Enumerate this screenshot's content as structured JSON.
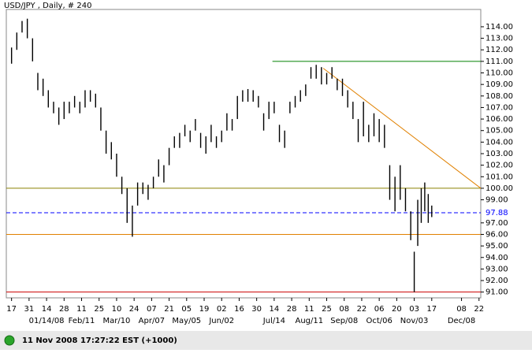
{
  "chart_data": {
    "type": "ohlc",
    "title": "USD/JPY , Daily, # 240",
    "status": "11 Nov 2008 17:27:22 EST (+1000)",
    "color": "#000000",
    "x": [
      0,
      3,
      6,
      9,
      12,
      15,
      18,
      21,
      24,
      27,
      30,
      33,
      36,
      39,
      42,
      45,
      48,
      51,
      54,
      57,
      60,
      63,
      66,
      69,
      72,
      75,
      78,
      81,
      84,
      87,
      90,
      93,
      96,
      99,
      102,
      105,
      108,
      111,
      114,
      117,
      120,
      123,
      126,
      129,
      132,
      135,
      138,
      141,
      144,
      147,
      150,
      153,
      156,
      159,
      162,
      165,
      168,
      171,
      174,
      177,
      180,
      183,
      186,
      189,
      192,
      195,
      198,
      201,
      204,
      207,
      210,
      213,
      216,
      219,
      222,
      225,
      228,
      230,
      232,
      234,
      236,
      238,
      240
    ],
    "high": [
      112.2,
      113.5,
      114.5,
      114.7,
      113,
      110,
      109.5,
      108.5,
      107.5,
      107,
      107.5,
      107.5,
      108,
      107.5,
      108.5,
      108.5,
      108.2,
      107,
      105,
      104,
      103,
      101,
      100,
      98.5,
      100.5,
      100.5,
      100.3,
      101,
      102.5,
      102,
      103.5,
      104.5,
      104.8,
      105.5,
      105,
      106,
      104.8,
      104.5,
      105.5,
      104.5,
      105,
      106.5,
      106,
      108,
      108.5,
      108.6,
      108.5,
      108,
      106.5,
      107.5,
      107.5,
      105.5,
      105,
      107.5,
      108,
      108.5,
      109,
      110.5,
      110.7,
      110.5,
      110,
      110.5,
      109.5,
      109.5,
      108.5,
      107.5,
      106,
      107.5,
      105.5,
      106.5,
      106,
      105.5,
      102,
      101,
      102,
      100,
      98,
      94.5,
      99,
      100,
      100.5,
      99.5,
      98.5
    ],
    "low": [
      110.8,
      112,
      113.5,
      113,
      111,
      108.5,
      108,
      107,
      106.5,
      105.5,
      106,
      106.5,
      107,
      106.5,
      107,
      107.5,
      107,
      105,
      103,
      102.5,
      101,
      99.5,
      97,
      95.8,
      98.5,
      99.5,
      99,
      100,
      101,
      100.5,
      102,
      103.5,
      103.5,
      104.5,
      104,
      105,
      103.5,
      103,
      104,
      103.5,
      104,
      105,
      105,
      106,
      107.5,
      107.5,
      107.5,
      107,
      105,
      106,
      106.5,
      104,
      103.5,
      106.5,
      107,
      107.5,
      108,
      109.5,
      109.5,
      109,
      109,
      109.5,
      108.5,
      108,
      107,
      106,
      104,
      104.5,
      104,
      104.5,
      104,
      103.5,
      99,
      98,
      99,
      98,
      95.5,
      91,
      95,
      97,
      98,
      97,
      97.5
    ],
    "xlim": [
      -3,
      268
    ],
    "ylim": [
      90.5,
      115.5
    ],
    "xticks": [
      {
        "value": 0,
        "label": "17"
      },
      {
        "value": 10,
        "label": "31"
      },
      {
        "value": 20,
        "label": "14"
      },
      {
        "value": 30,
        "label": "28"
      },
      {
        "value": 40,
        "label": "11"
      },
      {
        "value": 50,
        "label": "25"
      },
      {
        "value": 60,
        "label": "10"
      },
      {
        "value": 70,
        "label": "24"
      },
      {
        "value": 80,
        "label": "07"
      },
      {
        "value": 90,
        "label": "21"
      },
      {
        "value": 100,
        "label": "05"
      },
      {
        "value": 110,
        "label": "19"
      },
      {
        "value": 120,
        "label": "02"
      },
      {
        "value": 130,
        "label": "16"
      },
      {
        "value": 140,
        "label": "30"
      },
      {
        "value": 150,
        "label": "14"
      },
      {
        "value": 160,
        "label": "28"
      },
      {
        "value": 170,
        "label": "11"
      },
      {
        "value": 180,
        "label": "25"
      },
      {
        "value": 190,
        "label": "08"
      },
      {
        "value": 200,
        "label": "22"
      },
      {
        "value": 210,
        "label": "06"
      },
      {
        "value": 220,
        "label": "20"
      },
      {
        "value": 230,
        "label": "03"
      },
      {
        "value": 240,
        "label": "17"
      },
      {
        "value": 257,
        "label": "08"
      },
      {
        "value": 267,
        "label": "22"
      }
    ],
    "month_ticks": [
      {
        "value": 20,
        "label": "01/14/08"
      },
      {
        "value": 40,
        "label": "Feb/11"
      },
      {
        "value": 60,
        "label": "Mar/10"
      },
      {
        "value": 80,
        "label": "Apr/07"
      },
      {
        "value": 100,
        "label": "May/05"
      },
      {
        "value": 120,
        "label": "Jun/02"
      },
      {
        "value": 150,
        "label": "Jul/14"
      },
      {
        "value": 170,
        "label": "Aug/11"
      },
      {
        "value": 190,
        "label": "Sep/08"
      },
      {
        "value": 210,
        "label": "Oct/06"
      },
      {
        "value": 230,
        "label": "Nov/03"
      },
      {
        "value": 257,
        "label": "Dec/08"
      }
    ],
    "yticks": [
      {
        "value": 91,
        "label": "91.00"
      },
      {
        "value": 92,
        "label": "92.00"
      },
      {
        "value": 93,
        "label": "93.00"
      },
      {
        "value": 94,
        "label": "94.00"
      },
      {
        "value": 95,
        "label": "95.00"
      },
      {
        "value": 96,
        "label": "96.00"
      },
      {
        "value": 97,
        "label": "97.00"
      },
      {
        "value": 99,
        "label": "99.00"
      },
      {
        "value": 100,
        "label": "100.00"
      },
      {
        "value": 101,
        "label": "101.00"
      },
      {
        "value": 102,
        "label": "102.00"
      },
      {
        "value": 103,
        "label": "103.00"
      },
      {
        "value": 104,
        "label": "104.00"
      },
      {
        "value": 105,
        "label": "105.00"
      },
      {
        "value": 106,
        "label": "106.00"
      },
      {
        "value": 107,
        "label": "107.00"
      },
      {
        "value": 108,
        "label": "108.00"
      },
      {
        "value": 109,
        "label": "109.00"
      },
      {
        "value": 110,
        "label": "110.00"
      },
      {
        "value": 111,
        "label": "111.00"
      },
      {
        "value": 112,
        "label": "112.00"
      },
      {
        "value": 113,
        "label": "113.00"
      },
      {
        "value": 114,
        "label": "114.00"
      }
    ],
    "hlines": [
      {
        "value": 100,
        "color": "#8b8000"
      },
      {
        "value": 96,
        "color": "#e08000"
      },
      {
        "value": 91,
        "color": "#cc0000"
      },
      {
        "value": 97.88,
        "color": "#0000ff",
        "dashed": true,
        "label": "97.88"
      }
    ],
    "segments": [
      {
        "x": [
          149,
          268
        ],
        "y": [
          111,
          111
        ],
        "color": "#008000"
      },
      {
        "x": [
          178,
          268
        ],
        "y": [
          110.4,
          100
        ],
        "color": "#e08000"
      }
    ]
  }
}
